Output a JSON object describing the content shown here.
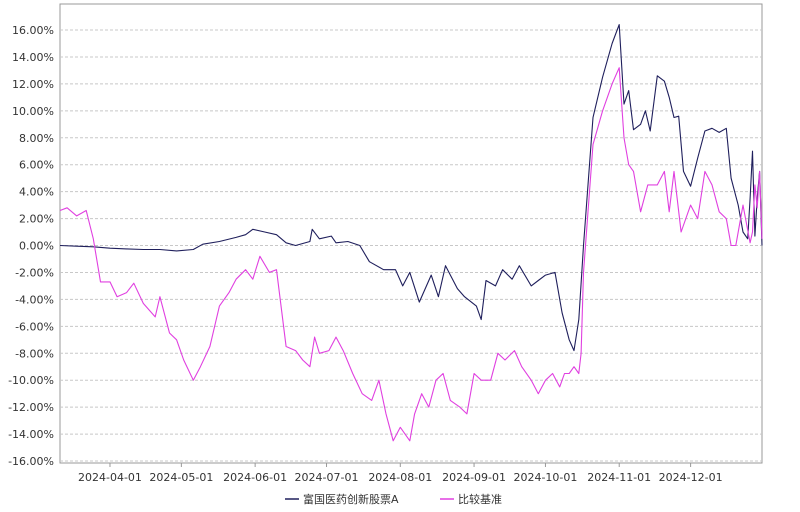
{
  "chart_data": {
    "type": "line",
    "x_start": "2024-03-11",
    "x_end": "2024-12-31",
    "ylim": [
      -16,
      17
    ],
    "y_ticks": [
      16,
      14,
      12,
      10,
      8,
      6,
      4,
      2,
      0,
      -2,
      -4,
      -6,
      -8,
      -10,
      -12,
      -14,
      -16
    ],
    "y_tick_labels": [
      "16.00%",
      "14.00%",
      "12.00%",
      "10.00%",
      "8.00%",
      "6.00%",
      "4.00%",
      "2.00%",
      "0.00%",
      "-2.00%",
      "-4.00%",
      "-6.00%",
      "-8.00%",
      "-10.00%",
      "-12.00%",
      "-14.00%",
      "-16.00%"
    ],
    "x_ticks": [
      "2024-04-01",
      "2024-05-01",
      "2024-06-01",
      "2024-07-01",
      "2024-08-01",
      "2024-09-01",
      "2024-10-01",
      "2024-11-01",
      "2024-12-01"
    ],
    "grid": true,
    "legend_position": "bottom-center",
    "series": [
      {
        "name": "富国医药创新股票A",
        "color": "#1f1f5c",
        "points": [
          [
            "2024-03-11",
            0.0
          ],
          [
            "2024-03-18",
            -0.05
          ],
          [
            "2024-03-25",
            -0.1
          ],
          [
            "2024-04-01",
            -0.2
          ],
          [
            "2024-04-08",
            -0.25
          ],
          [
            "2024-04-15",
            -0.3
          ],
          [
            "2024-04-22",
            -0.3
          ],
          [
            "2024-04-29",
            -0.4
          ],
          [
            "2024-05-06",
            -0.3
          ],
          [
            "2024-05-10",
            0.1
          ],
          [
            "2024-05-17",
            0.3
          ],
          [
            "2024-05-24",
            0.6
          ],
          [
            "2024-05-28",
            0.8
          ],
          [
            "2024-05-31",
            1.2
          ],
          [
            "2024-06-05",
            1.0
          ],
          [
            "2024-06-10",
            0.8
          ],
          [
            "2024-06-14",
            0.2
          ],
          [
            "2024-06-18",
            0.0
          ],
          [
            "2024-06-24",
            0.3
          ],
          [
            "2024-06-25",
            1.2
          ],
          [
            "2024-06-28",
            0.5
          ],
          [
            "2024-07-03",
            0.7
          ],
          [
            "2024-07-05",
            0.2
          ],
          [
            "2024-07-10",
            0.3
          ],
          [
            "2024-07-15",
            0.0
          ],
          [
            "2024-07-19",
            -1.2
          ],
          [
            "2024-07-25",
            -1.8
          ],
          [
            "2024-07-30",
            -1.8
          ],
          [
            "2024-08-02",
            -3.0
          ],
          [
            "2024-08-05",
            -2.0
          ],
          [
            "2024-08-09",
            -4.2
          ],
          [
            "2024-08-14",
            -2.2
          ],
          [
            "2024-08-17",
            -3.8
          ],
          [
            "2024-08-20",
            -1.5
          ],
          [
            "2024-08-25",
            -3.2
          ],
          [
            "2024-08-28",
            -3.8
          ],
          [
            "2024-09-02",
            -4.5
          ],
          [
            "2024-09-04",
            -5.5
          ],
          [
            "2024-09-06",
            -2.6
          ],
          [
            "2024-09-10",
            -3.0
          ],
          [
            "2024-09-13",
            -1.8
          ],
          [
            "2024-09-17",
            -2.5
          ],
          [
            "2024-09-20",
            -1.5
          ],
          [
            "2024-09-25",
            -3.0
          ],
          [
            "2024-09-28",
            -2.6
          ],
          [
            "2024-10-01",
            -2.2
          ],
          [
            "2024-10-05",
            -2.0
          ],
          [
            "2024-10-08",
            -5.0
          ],
          [
            "2024-10-11",
            -7.0
          ],
          [
            "2024-10-13",
            -7.8
          ],
          [
            "2024-10-15",
            -5.5
          ],
          [
            "2024-10-17",
            0.0
          ],
          [
            "2024-10-21",
            9.5
          ],
          [
            "2024-10-25",
            12.5
          ],
          [
            "2024-10-29",
            15.0
          ],
          [
            "2024-11-01",
            16.4
          ],
          [
            "2024-11-03",
            10.5
          ],
          [
            "2024-11-05",
            11.5
          ],
          [
            "2024-11-07",
            8.6
          ],
          [
            "2024-11-10",
            9.0
          ],
          [
            "2024-11-12",
            10.0
          ],
          [
            "2024-11-14",
            8.5
          ],
          [
            "2024-11-17",
            12.6
          ],
          [
            "2024-11-20",
            12.2
          ],
          [
            "2024-11-22",
            11.0
          ],
          [
            "2024-11-24",
            9.5
          ],
          [
            "2024-11-26",
            9.6
          ],
          [
            "2024-11-28",
            5.5
          ],
          [
            "2024-12-01",
            4.4
          ],
          [
            "2024-12-04",
            6.5
          ],
          [
            "2024-12-07",
            8.5
          ],
          [
            "2024-12-10",
            8.7
          ],
          [
            "2024-12-13",
            8.4
          ],
          [
            "2024-12-16",
            8.7
          ],
          [
            "2024-12-18",
            5.0
          ],
          [
            "2024-12-21",
            3.0
          ],
          [
            "2024-12-23",
            1.0
          ],
          [
            "2024-12-25",
            0.5
          ],
          [
            "2024-12-26",
            3.5
          ],
          [
            "2024-12-27",
            7.0
          ],
          [
            "2024-12-28",
            0.7
          ],
          [
            "2024-12-29",
            3.5
          ],
          [
            "2024-12-30",
            5.5
          ],
          [
            "2024-12-31",
            0.0
          ]
        ]
      },
      {
        "name": "比较基准",
        "color": "#e040e0",
        "points": [
          [
            "2024-03-11",
            2.6
          ],
          [
            "2024-03-14",
            2.8
          ],
          [
            "2024-03-18",
            2.2
          ],
          [
            "2024-03-22",
            2.6
          ],
          [
            "2024-03-25",
            0.5
          ],
          [
            "2024-03-28",
            -2.7
          ],
          [
            "2024-04-01",
            -2.7
          ],
          [
            "2024-04-04",
            -3.8
          ],
          [
            "2024-04-08",
            -3.5
          ],
          [
            "2024-04-11",
            -2.8
          ],
          [
            "2024-04-15",
            -4.3
          ],
          [
            "2024-04-20",
            -5.3
          ],
          [
            "2024-04-22",
            -3.8
          ],
          [
            "2024-04-26",
            -6.5
          ],
          [
            "2024-04-29",
            -7.0
          ],
          [
            "2024-05-02",
            -8.5
          ],
          [
            "2024-05-06",
            -10.0
          ],
          [
            "2024-05-09",
            -9.0
          ],
          [
            "2024-05-13",
            -7.5
          ],
          [
            "2024-05-17",
            -4.5
          ],
          [
            "2024-05-21",
            -3.5
          ],
          [
            "2024-05-24",
            -2.5
          ],
          [
            "2024-05-28",
            -1.8
          ],
          [
            "2024-05-31",
            -2.5
          ],
          [
            "2024-06-03",
            -0.8
          ],
          [
            "2024-06-07",
            -2.0
          ],
          [
            "2024-06-10",
            -1.8
          ],
          [
            "2024-06-14",
            -7.5
          ],
          [
            "2024-06-18",
            -7.8
          ],
          [
            "2024-06-21",
            -8.5
          ],
          [
            "2024-06-24",
            -9.0
          ],
          [
            "2024-06-26",
            -6.8
          ],
          [
            "2024-06-28",
            -8.0
          ],
          [
            "2024-07-02",
            -7.8
          ],
          [
            "2024-07-05",
            -6.8
          ],
          [
            "2024-07-08",
            -7.8
          ],
          [
            "2024-07-12",
            -9.5
          ],
          [
            "2024-07-16",
            -11.0
          ],
          [
            "2024-07-20",
            -11.5
          ],
          [
            "2024-07-23",
            -10.0
          ],
          [
            "2024-07-26",
            -12.5
          ],
          [
            "2024-07-29",
            -14.5
          ],
          [
            "2024-08-01",
            -13.5
          ],
          [
            "2024-08-05",
            -14.5
          ],
          [
            "2024-08-07",
            -12.5
          ],
          [
            "2024-08-10",
            -11.0
          ],
          [
            "2024-08-13",
            -12.0
          ],
          [
            "2024-08-16",
            -10.0
          ],
          [
            "2024-08-19",
            -9.5
          ],
          [
            "2024-08-22",
            -11.5
          ],
          [
            "2024-08-26",
            -12.0
          ],
          [
            "2024-08-29",
            -12.5
          ],
          [
            "2024-09-01",
            -9.5
          ],
          [
            "2024-09-04",
            -10.0
          ],
          [
            "2024-09-08",
            -10.0
          ],
          [
            "2024-09-11",
            -8.0
          ],
          [
            "2024-09-14",
            -8.5
          ],
          [
            "2024-09-18",
            -7.8
          ],
          [
            "2024-09-21",
            -9.0
          ],
          [
            "2024-09-25",
            -10.0
          ],
          [
            "2024-09-28",
            -11.0
          ],
          [
            "2024-10-01",
            -10.0
          ],
          [
            "2024-10-04",
            -9.5
          ],
          [
            "2024-10-07",
            -10.5
          ],
          [
            "2024-10-09",
            -9.5
          ],
          [
            "2024-10-11",
            -9.5
          ],
          [
            "2024-10-13",
            -9.0
          ],
          [
            "2024-10-15",
            -9.5
          ],
          [
            "2024-10-16",
            -8.0
          ],
          [
            "2024-10-17",
            -2.0
          ],
          [
            "2024-10-21",
            7.5
          ],
          [
            "2024-10-25",
            10.0
          ],
          [
            "2024-10-29",
            12.0
          ],
          [
            "2024-11-01",
            13.2
          ],
          [
            "2024-11-03",
            8.0
          ],
          [
            "2024-11-05",
            6.0
          ],
          [
            "2024-11-07",
            5.5
          ],
          [
            "2024-11-10",
            2.5
          ],
          [
            "2024-11-13",
            4.5
          ],
          [
            "2024-11-17",
            4.5
          ],
          [
            "2024-11-20",
            5.5
          ],
          [
            "2024-11-22",
            2.5
          ],
          [
            "2024-11-24",
            5.5
          ],
          [
            "2024-11-27",
            1.0
          ],
          [
            "2024-12-01",
            3.0
          ],
          [
            "2024-12-04",
            2.0
          ],
          [
            "2024-12-07",
            5.5
          ],
          [
            "2024-12-10",
            4.5
          ],
          [
            "2024-12-13",
            2.5
          ],
          [
            "2024-12-16",
            2.0
          ],
          [
            "2024-12-18",
            0.0
          ],
          [
            "2024-12-20",
            0.0
          ],
          [
            "2024-12-23",
            3.0
          ],
          [
            "2024-12-26",
            0.2
          ],
          [
            "2024-12-27",
            1.0
          ],
          [
            "2024-12-28",
            4.5
          ],
          [
            "2024-12-29",
            2.8
          ],
          [
            "2024-12-30",
            5.5
          ],
          [
            "2024-12-31",
            0.5
          ]
        ]
      }
    ]
  }
}
